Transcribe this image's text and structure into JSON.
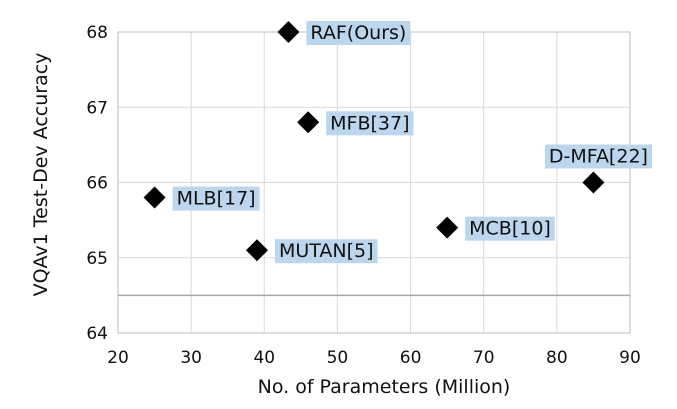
{
  "chart_data": {
    "type": "scatter",
    "title": "",
    "xlabel": "No. of Parameters (Million)",
    "ylabel": "VQAv1 Test-Dev Accuracy",
    "xlim": [
      20,
      90
    ],
    "ylim": [
      64,
      68
    ],
    "xticks": [
      20,
      30,
      40,
      50,
      60,
      70,
      80,
      90
    ],
    "yticks": [
      64,
      65,
      66,
      67,
      68
    ],
    "grid": true,
    "reference_line_y": 64.5,
    "marker": "diamond",
    "marker_color": "#000000",
    "label_background": "#bcd6ee",
    "points": [
      {
        "label": "RAF(Ours)",
        "x": 43.3,
        "y": 68.0,
        "label_pos": "right"
      },
      {
        "label": "MFB[37]",
        "x": 46,
        "y": 66.8,
        "label_pos": "right"
      },
      {
        "label": "D-MFA[22]",
        "x": 85,
        "y": 66.0,
        "label_pos": "above"
      },
      {
        "label": "MLB[17]",
        "x": 25,
        "y": 65.8,
        "label_pos": "right"
      },
      {
        "label": "MCB[10]",
        "x": 65,
        "y": 65.4,
        "label_pos": "right"
      },
      {
        "label": "MUTAN[5]",
        "x": 39,
        "y": 65.1,
        "label_pos": "right"
      }
    ]
  }
}
